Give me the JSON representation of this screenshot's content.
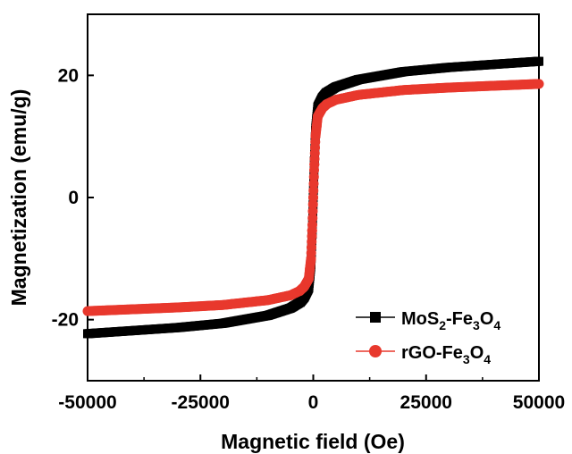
{
  "chart_data": {
    "type": "scatter",
    "title": "",
    "xlabel": "Magnetic field (Oe)",
    "ylabel": "Magnetization (emu/g)",
    "xlim": [
      -50000,
      50000
    ],
    "ylim": [
      -30,
      30
    ],
    "x_ticks": [
      -50000,
      -25000,
      0,
      25000,
      50000
    ],
    "x_tick_labels": [
      "-50000",
      "-25000",
      "0",
      "25000",
      "50000"
    ],
    "y_ticks": [
      -20,
      0,
      20
    ],
    "y_tick_labels": [
      "-20",
      "0",
      "20"
    ],
    "grid": false,
    "legend_position": "bottom-right",
    "series": [
      {
        "name": "MoS2-Fe3O4",
        "legend_label": {
          "base": "MoS",
          "sub1": "2",
          "mid": "-Fe",
          "sub2": "3",
          "mid2": "O",
          "sub3": "4"
        },
        "color": "#000000",
        "marker": "square",
        "x": [
          -50000,
          -40000,
          -30000,
          -20000,
          -10000,
          -5000,
          -3000,
          -2000,
          -1000,
          -500,
          -200,
          0,
          200,
          500,
          1000,
          2000,
          3000,
          5000,
          10000,
          20000,
          30000,
          40000,
          50000
        ],
        "y": [
          -22.3,
          -21.8,
          -21.3,
          -20.6,
          -19.3,
          -18.1,
          -17.2,
          -16.3,
          -14.8,
          -11.0,
          -5.0,
          0.0,
          5.0,
          11.0,
          14.8,
          16.3,
          17.2,
          18.1,
          19.3,
          20.6,
          21.3,
          21.8,
          22.3
        ]
      },
      {
        "name": "rGO-Fe3O4",
        "legend_label": {
          "base": "rGO-Fe",
          "sub1": "3",
          "mid": "O",
          "sub2": "4"
        },
        "color": "#e8382d",
        "marker": "circle",
        "x": [
          -50000,
          -40000,
          -30000,
          -20000,
          -10000,
          -5000,
          -3000,
          -2000,
          -1000,
          -500,
          -200,
          0,
          200,
          500,
          1000,
          2000,
          3000,
          5000,
          10000,
          20000,
          30000,
          40000,
          50000
        ],
        "y": [
          -18.6,
          -18.3,
          -18.0,
          -17.6,
          -16.8,
          -16.0,
          -15.3,
          -14.6,
          -13.3,
          -10.0,
          -4.5,
          0.0,
          4.5,
          10.0,
          13.3,
          14.6,
          15.3,
          16.0,
          16.8,
          17.6,
          18.0,
          18.3,
          18.6
        ]
      }
    ]
  }
}
